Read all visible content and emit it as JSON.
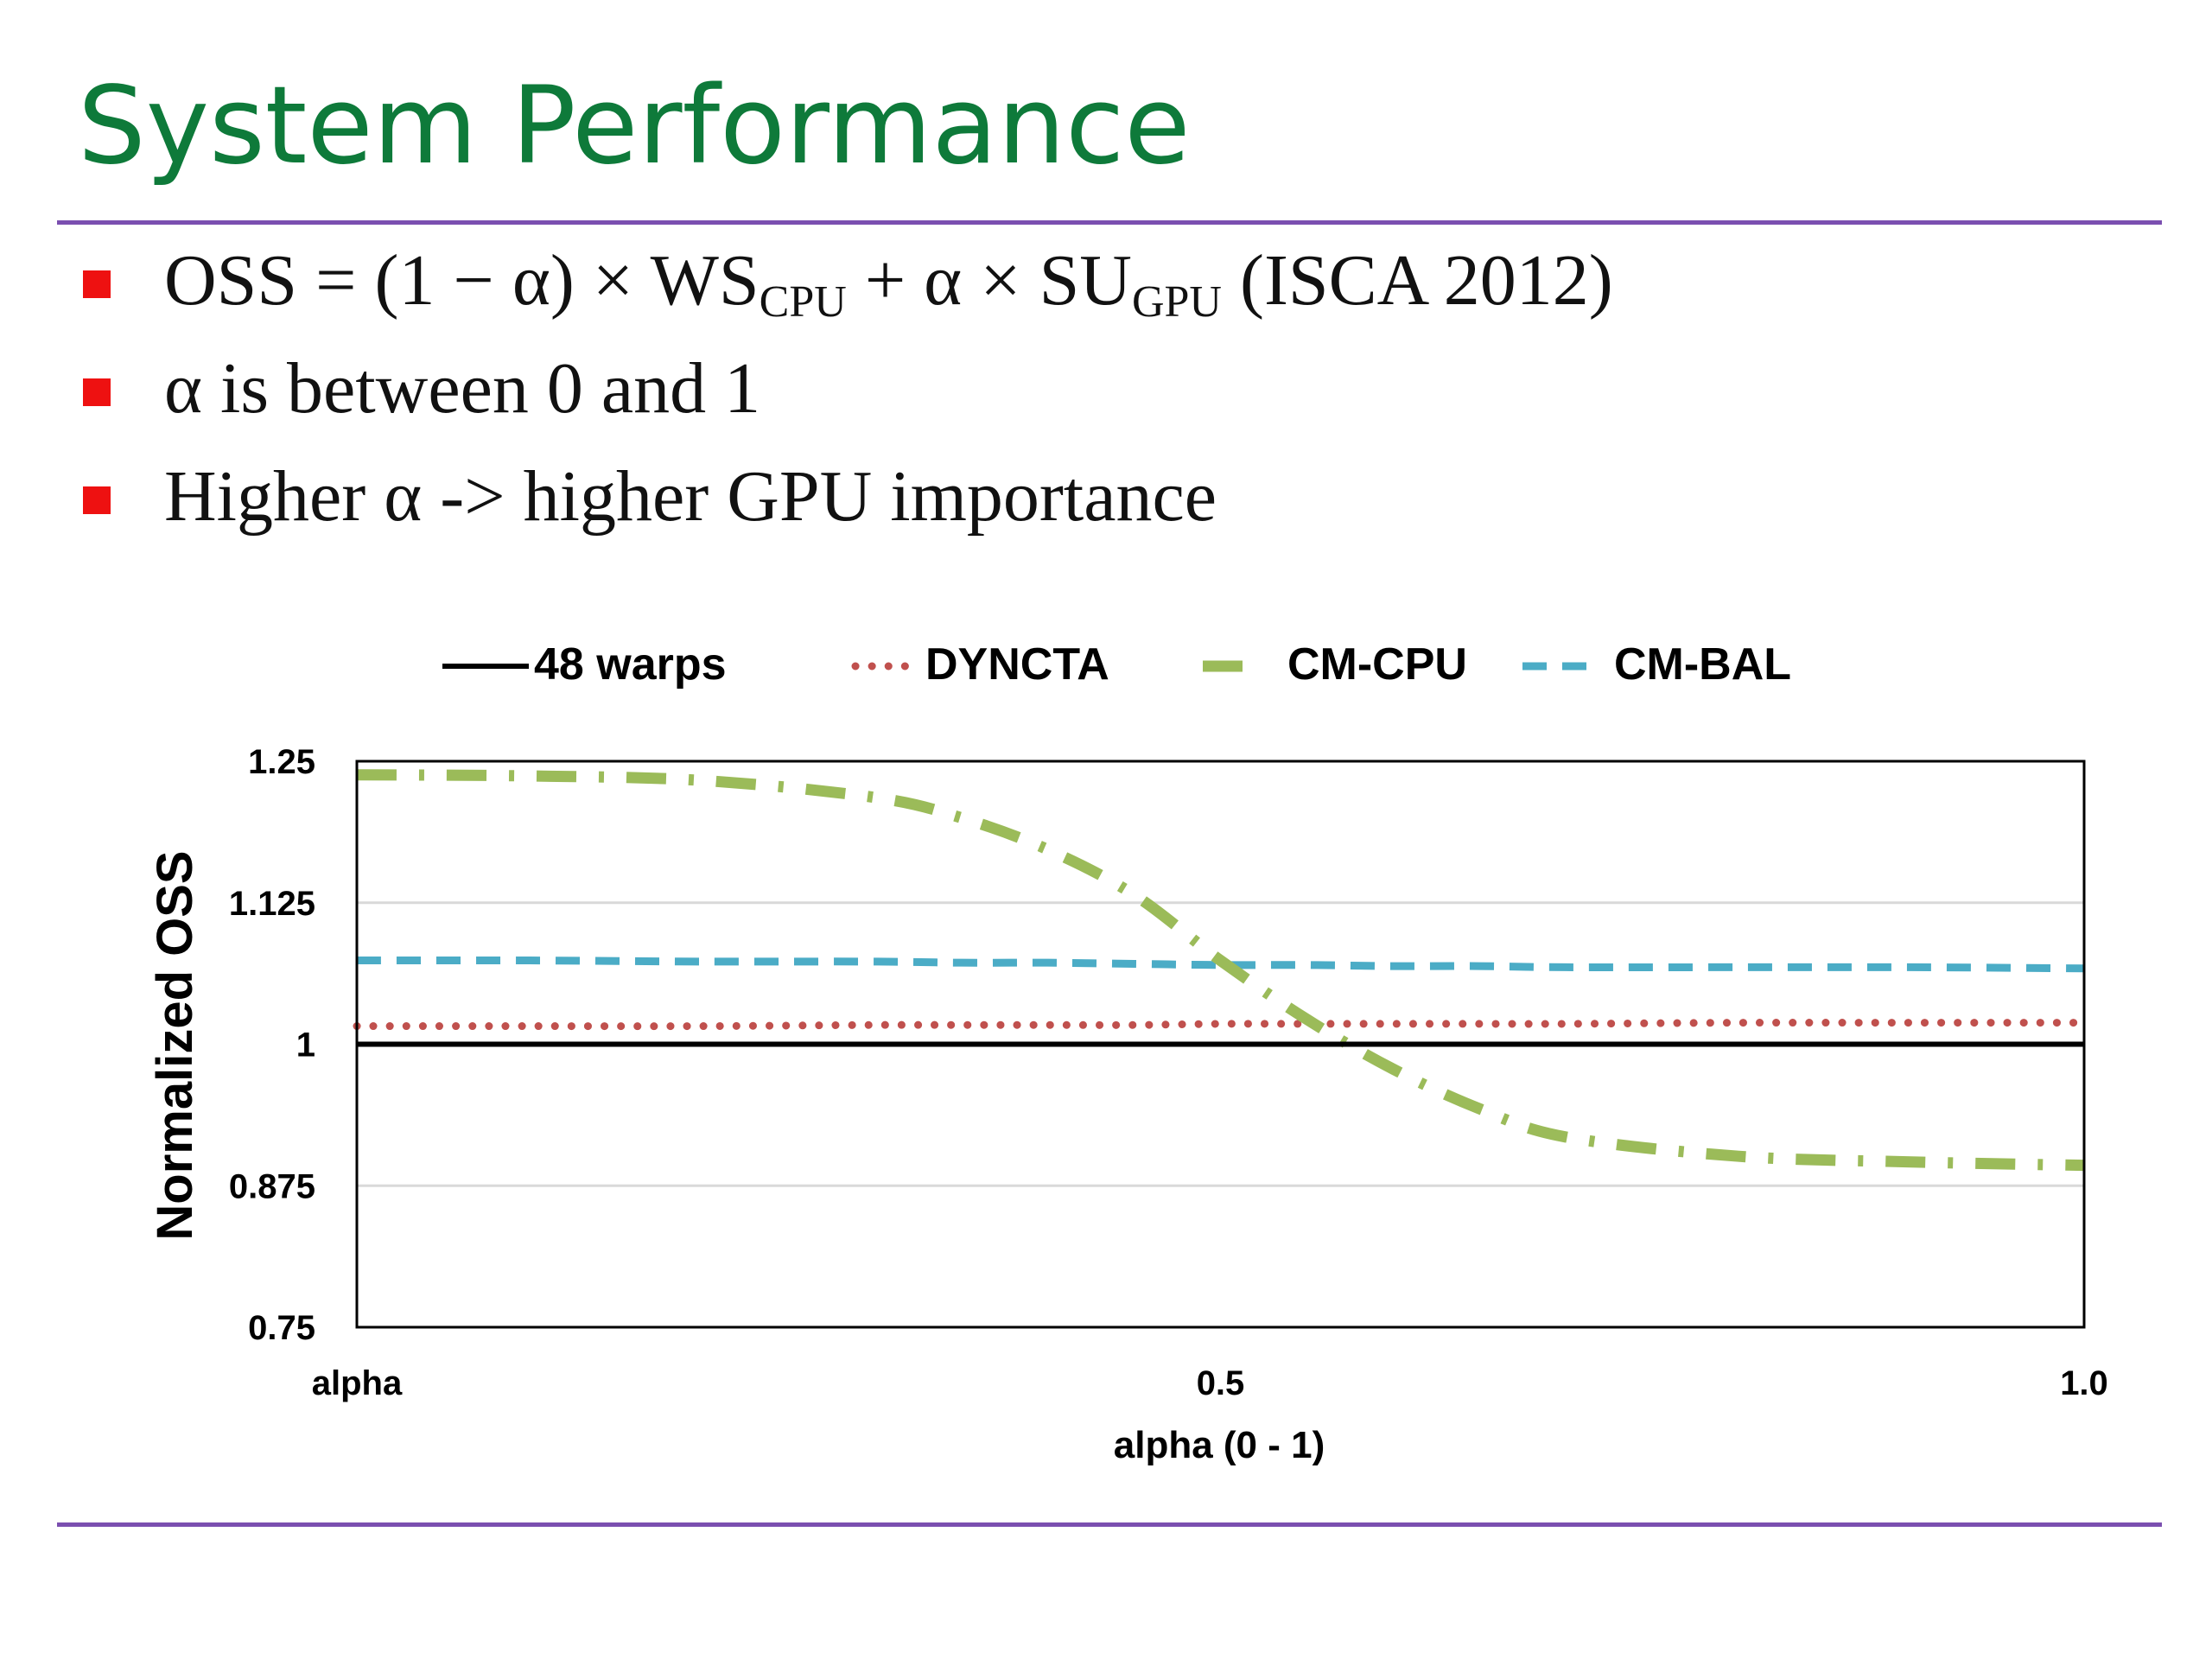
{
  "title": "System Performance",
  "bullets": [
    {
      "pre": "OSS = (1 − α) × WS",
      "sub1": "CPU",
      "mid": " + α × SU",
      "sub2": "GPU",
      "post": " (ISCA 2012)"
    },
    {
      "pre": "α  is between 0 and 1",
      "sub1": "",
      "mid": "",
      "sub2": "",
      "post": ""
    },
    {
      "pre": "Higher α -> higher GPU importance",
      "sub1": "",
      "mid": "",
      "sub2": "",
      "post": ""
    }
  ],
  "chart_data": {
    "type": "line",
    "title": "",
    "xlabel": "alpha (0 - 1)",
    "ylabel": "Normalized OSS",
    "x_ticks": [
      {
        "value": 0,
        "label": "alpha"
      },
      {
        "value": 0.5,
        "label": "0.5"
      },
      {
        "value": 1.0,
        "label": "1.0"
      }
    ],
    "y_ticks": [
      {
        "value": 0.75,
        "label": "0.75"
      },
      {
        "value": 0.875,
        "label": "0.875"
      },
      {
        "value": 1,
        "label": "1"
      },
      {
        "value": 1.125,
        "label": "1.125"
      },
      {
        "value": 1.25,
        "label": "1.25"
      }
    ],
    "xlim": [
      0,
      1
    ],
    "ylim": [
      0.75,
      1.25
    ],
    "grid": "horizontal",
    "legend_position": "top",
    "x": [
      0,
      0.1,
      0.2,
      0.3,
      0.35,
      0.4,
      0.45,
      0.5,
      0.55,
      0.6,
      0.65,
      0.7,
      0.8,
      0.9,
      1.0
    ],
    "series": [
      {
        "name": "48 warps",
        "color": "#000000",
        "style": "solid",
        "values": [
          1,
          1,
          1,
          1,
          1,
          1,
          1,
          1,
          1,
          1,
          1,
          1,
          1,
          1,
          1
        ]
      },
      {
        "name": "DYNCTA",
        "color": "#c0504d",
        "style": "dotted",
        "values": [
          1.016,
          1.016,
          1.016,
          1.017,
          1.017,
          1.017,
          1.017,
          1.018,
          1.018,
          1.018,
          1.018,
          1.018,
          1.019,
          1.019,
          1.019
        ]
      },
      {
        "name": "CM-CPU",
        "color": "#9bbb59",
        "style": "dashdot",
        "values": [
          1.238,
          1.237,
          1.233,
          1.218,
          1.2,
          1.172,
          1.132,
          1.074,
          1.022,
          0.978,
          0.943,
          0.918,
          0.901,
          0.896,
          0.893
        ]
      },
      {
        "name": "CM-BAL",
        "color": "#4bacc6",
        "style": "dashed",
        "values": [
          1.074,
          1.074,
          1.073,
          1.073,
          1.072,
          1.072,
          1.071,
          1.07,
          1.07,
          1.069,
          1.069,
          1.068,
          1.068,
          1.068,
          1.067
        ]
      }
    ]
  }
}
